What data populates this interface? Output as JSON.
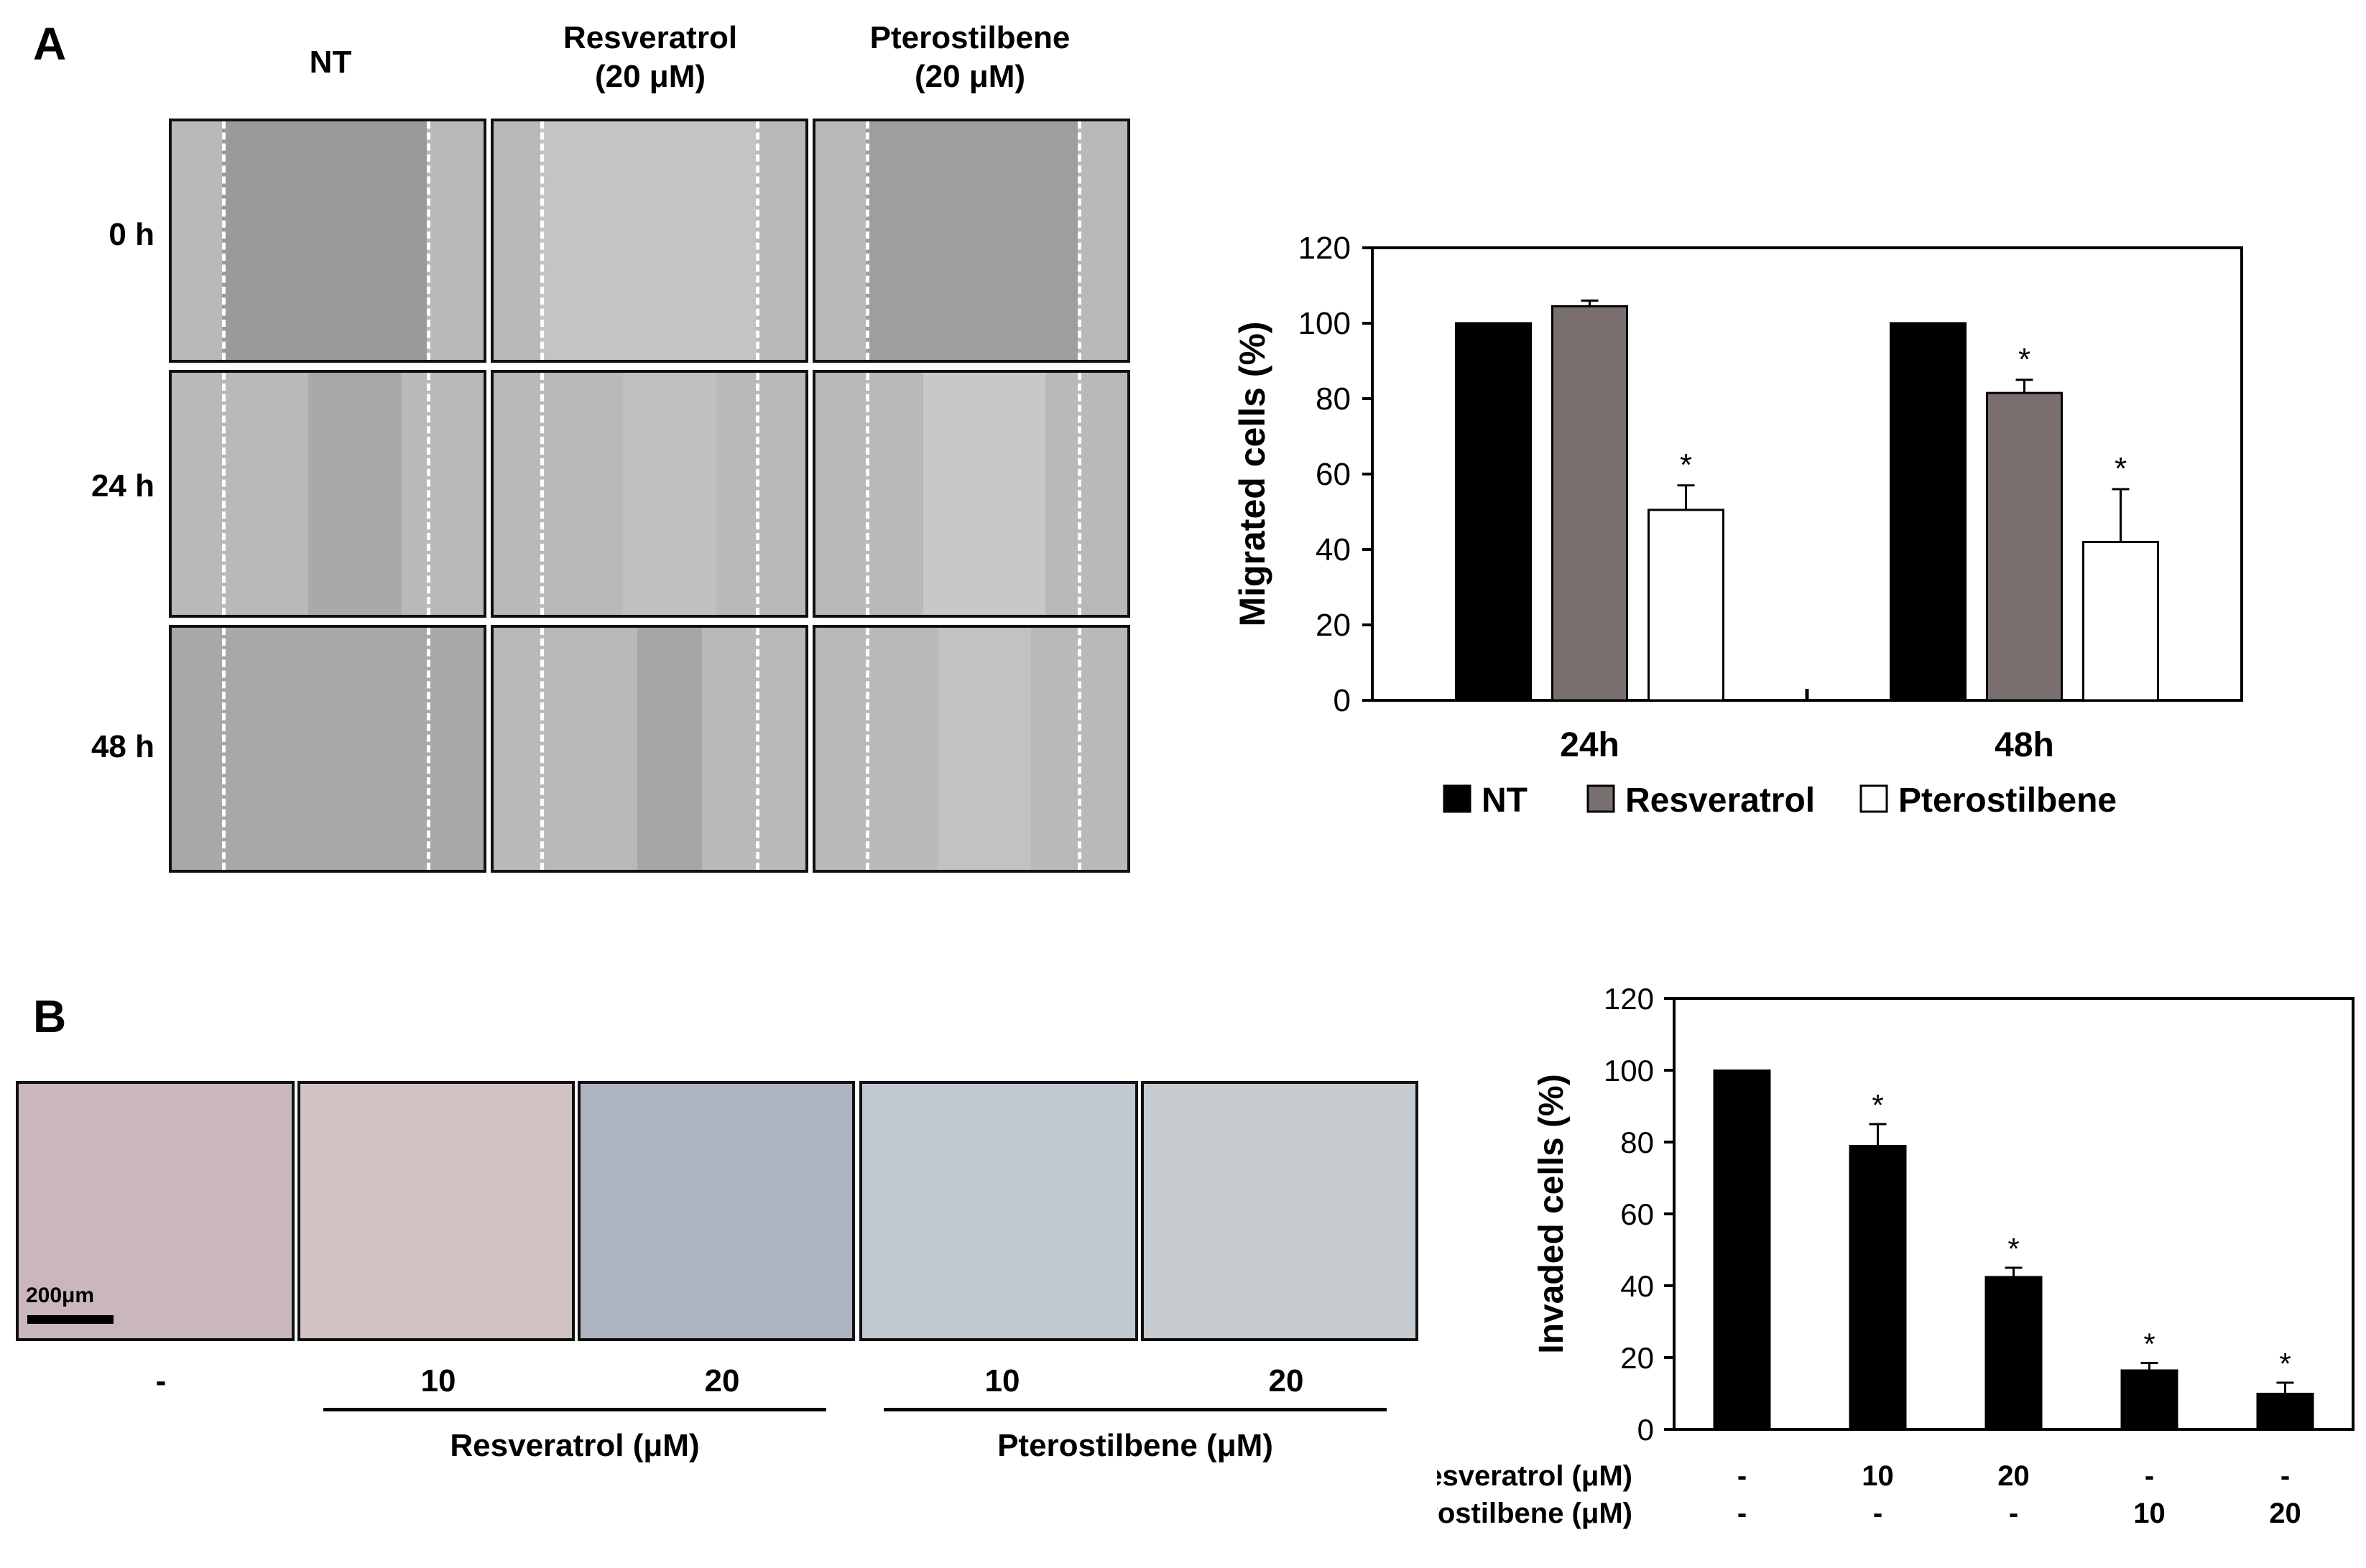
{
  "panelA": {
    "letter": "A",
    "column_headers": [
      {
        "line1": "NT",
        "line2": ""
      },
      {
        "line1": "Resveratrol",
        "line2": "(20 μM)"
      },
      {
        "line1": "Pterostilbene",
        "line2": "(20 μM)"
      }
    ],
    "row_labels": [
      "0 h",
      "24 h",
      "48 h"
    ]
  },
  "panelB": {
    "letter": "B",
    "scale_bar": "200μm",
    "conditions": [
      "-",
      "10",
      "20",
      "10",
      "20"
    ],
    "group_labels": [
      "Resveratrol (μM)",
      "Pterostilbene (μM)"
    ]
  },
  "chart_data": [
    {
      "type": "bar",
      "ylabel": "Migrated cells (%)",
      "ylim": [
        0,
        120
      ],
      "yticks": [
        0,
        20,
        40,
        60,
        80,
        100,
        120
      ],
      "categories": [
        "24h",
        "48h"
      ],
      "series": [
        {
          "name": "NT",
          "values": [
            100,
            100
          ],
          "errors": [
            0,
            0
          ],
          "significant": [
            false,
            false
          ],
          "color": "#000000"
        },
        {
          "name": "Resveratrol",
          "values": [
            104.5,
            81.5
          ],
          "errors": [
            1.5,
            3.5
          ],
          "significant": [
            false,
            true
          ],
          "color": "#7a6f6f"
        },
        {
          "name": "Pterostilbene",
          "values": [
            50.5,
            42
          ],
          "errors": [
            6.5,
            14
          ],
          "significant": [
            true,
            true
          ],
          "color": "#ffffff"
        }
      ],
      "significance_marker": "*",
      "legend": "bottom"
    },
    {
      "type": "bar",
      "ylabel": "Invaded cells (%)",
      "ylim": [
        0,
        120
      ],
      "yticks": [
        0,
        20,
        40,
        60,
        80,
        100,
        120
      ],
      "values": [
        100,
        79,
        42.5,
        16.5,
        10
      ],
      "errors": [
        0,
        6,
        2.5,
        2,
        3
      ],
      "significant": [
        false,
        true,
        true,
        true,
        true
      ],
      "significance_marker": "*",
      "color": "#000000",
      "condition_rows": [
        {
          "label": "Resveratrol (μM)",
          "values": [
            "-",
            "10",
            "20",
            "-",
            "-"
          ]
        },
        {
          "label": "Pterostilbene (μM)",
          "values": [
            "-",
            "-",
            "-",
            "10",
            "20"
          ]
        }
      ]
    }
  ]
}
